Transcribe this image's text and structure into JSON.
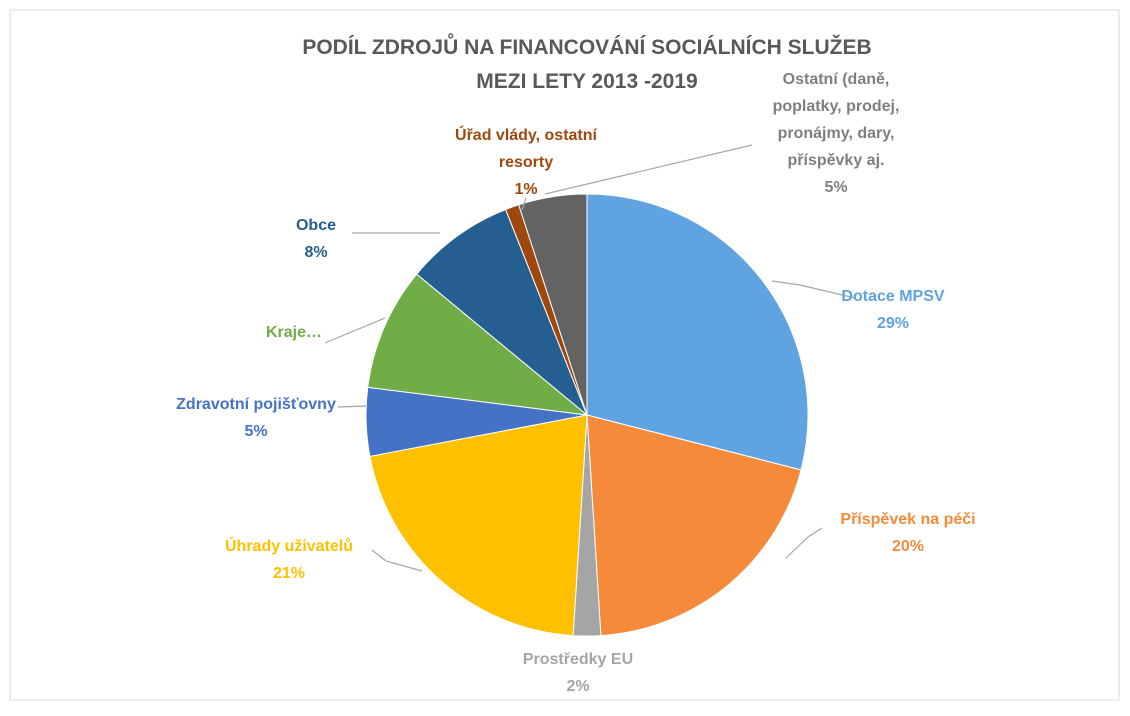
{
  "chart_data": {
    "type": "pie",
    "title": "PODÍL ZDROJŮ NA FINANCOVÁNÍ SOCIÁLNÍCH SLUŽEB MEZI LETY 2013 -2019",
    "categories": [
      "Dotace MPSV",
      "Příspěvek na péči",
      "Prostředky EU",
      "Úhrady uživatelů",
      "Zdravotní pojišťovny",
      "Kraje…",
      "Obce",
      "Úřad vlády, ostatní resorty",
      "Ostatní (daně, poplatky, prodej, pronájmy, dary, příspěvky aj."
    ],
    "values": [
      29,
      20,
      2,
      21,
      5,
      9,
      8,
      1,
      5
    ],
    "value_labels": [
      "29%",
      "20%",
      "2%",
      "21%",
      "5%",
      null,
      "8%",
      "1%",
      "5%"
    ],
    "colors": [
      "#5fa3e0",
      "#f58a3a",
      "#a5a5a5",
      "#ffc000",
      "#4472c4",
      "#70ad47",
      "#255e91",
      "#9e480e",
      "#636363"
    ],
    "label_colors": [
      "#5fa3e0",
      "#f58a3a",
      "#a5a5a5",
      "#ffc000",
      "#4472c4",
      "#70ad47",
      "#255e91",
      "#9e480e",
      "#7f7f7f"
    ]
  }
}
